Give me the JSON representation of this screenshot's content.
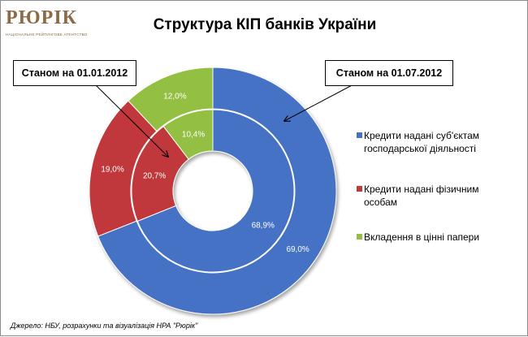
{
  "logo": {
    "word": "РЮРІК",
    "subtitle": "НАЦІОНАЛЬНЕ РЕЙТИНГОВЕ АГЕНТСТВО"
  },
  "chart_data": {
    "type": "pie",
    "subtype": "doughnut",
    "title": "Структура КІП банків України",
    "categories": [
      "Кредити надані суб'єктам господарської діяльності",
      "Кредити надані фізичним особам",
      "Вкладення в цінні папери"
    ],
    "colors": [
      "#4472C4",
      "#C0383A",
      "#93BF43"
    ],
    "series": [
      {
        "name": "Станом на 01.07.2012",
        "ring": "outer",
        "values": [
          69.0,
          19.0,
          12.0
        ],
        "labels": [
          "69,0%",
          "19,0%",
          "12,0%"
        ]
      },
      {
        "name": "Станом на 01.01.2012",
        "ring": "inner",
        "values": [
          68.9,
          20.7,
          10.4
        ],
        "labels": [
          "68,9%",
          "20,7%",
          "10,4%"
        ]
      }
    ],
    "legend_position": "right"
  },
  "legend": [
    {
      "text": "Кредити надані суб'єктам господарської діяльності",
      "color": "#4472C4"
    },
    {
      "text": "Кредити надані фізичним особам",
      "color": "#C0383A"
    },
    {
      "text": "Вкладення в цінні папери",
      "color": "#93BF43"
    }
  ],
  "callouts": {
    "left": "Станом на 01.01.2012",
    "right": "Станом на 01.07.2012"
  },
  "source": "Джерело: НБУ, розрахунки та візуалізація НРА \"Рюрік\""
}
